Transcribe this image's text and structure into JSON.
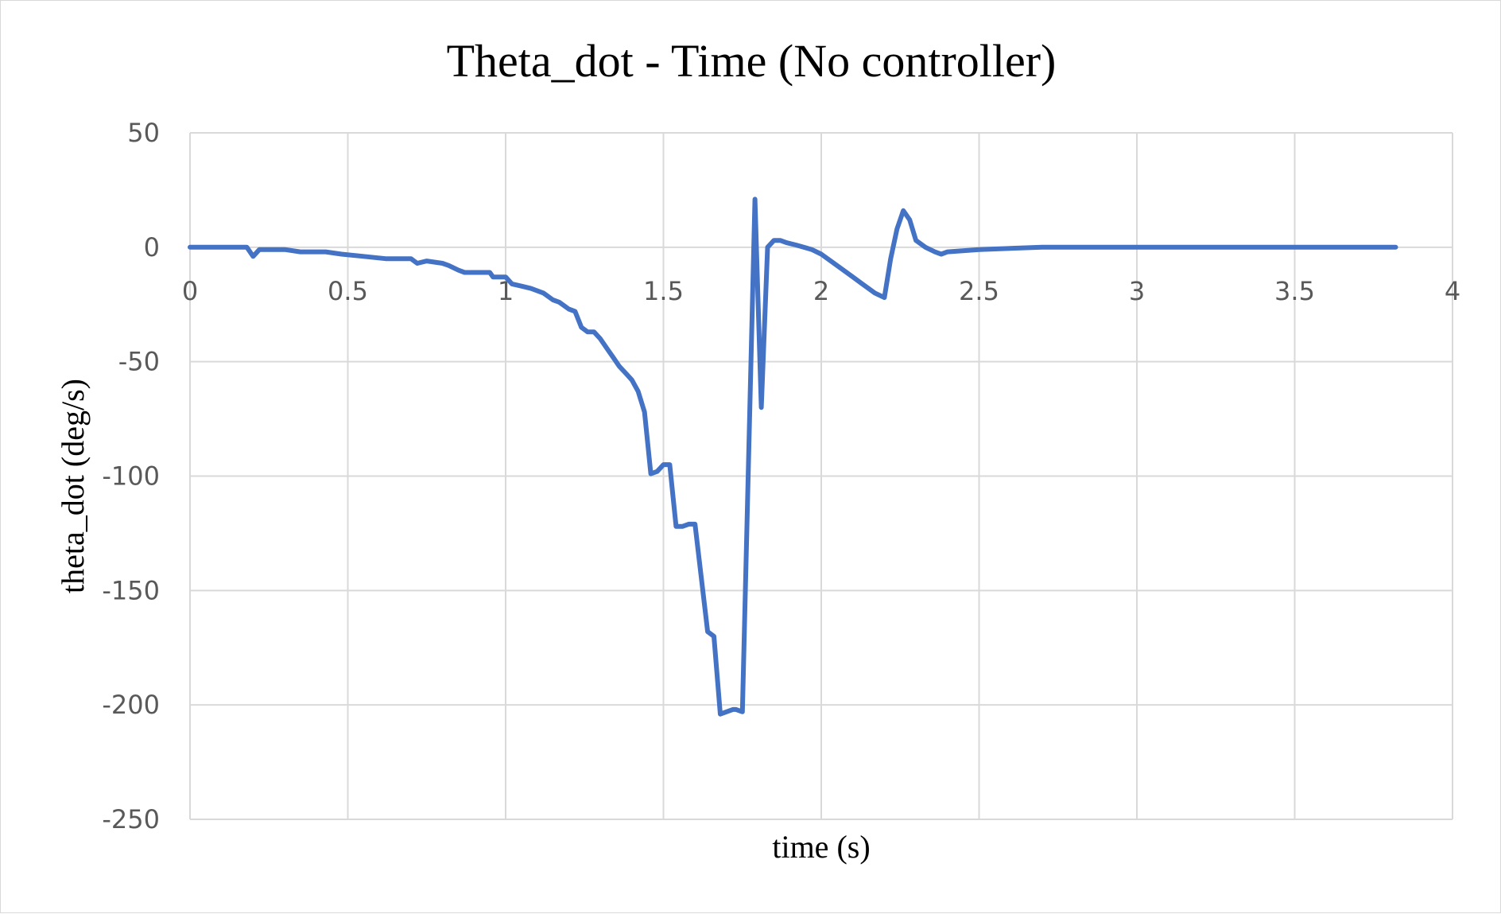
{
  "colors": {
    "series": "#4472C4",
    "grid": "#D9D9D9",
    "tick_text": "#595959"
  },
  "chart_data": {
    "type": "line",
    "title": "Theta_dot - Time (No controller)",
    "xlabel": "time (s)",
    "ylabel": "theta_dot (deg/s)",
    "xlim": [
      0,
      4
    ],
    "ylim": [
      -250,
      50
    ],
    "xticks": [
      0,
      0.5,
      1,
      1.5,
      2,
      2.5,
      3,
      3.5,
      4
    ],
    "yticks": [
      50,
      0,
      -50,
      -100,
      -150,
      -200,
      -250
    ],
    "xtick_labels": [
      "0",
      "0.5",
      "1",
      "1.5",
      "2",
      "2.5",
      "3",
      "3.5",
      "4"
    ],
    "ytick_labels": [
      "50",
      "0",
      "-50",
      "-100",
      "-150",
      "-200",
      "-250"
    ],
    "grid": true,
    "legend": "none",
    "series": [
      {
        "x": [
          0,
          0.18,
          0.2,
          0.22,
          0.3,
          0.35,
          0.43,
          0.48,
          0.55,
          0.62,
          0.7,
          0.72,
          0.75,
          0.8,
          0.82,
          0.85,
          0.87,
          0.9,
          0.95,
          0.96,
          1.0,
          1.02,
          1.05,
          1.08,
          1.12,
          1.15,
          1.17,
          1.2,
          1.22,
          1.24,
          1.26,
          1.28,
          1.3,
          1.32,
          1.34,
          1.36,
          1.38,
          1.4,
          1.42,
          1.44,
          1.46,
          1.48,
          1.5,
          1.52,
          1.54,
          1.56,
          1.58,
          1.6,
          1.64,
          1.66,
          1.68,
          1.7,
          1.72,
          1.73,
          1.75,
          1.79,
          1.81,
          1.83,
          1.85,
          1.87,
          1.89,
          1.92,
          1.97,
          2.0,
          2.03,
          2.07,
          2.1,
          2.13,
          2.17,
          2.2,
          2.22,
          2.24,
          2.26,
          2.28,
          2.3,
          2.33,
          2.36,
          2.38,
          2.4,
          2.5,
          2.7,
          3.0,
          3.5,
          3.82
        ],
        "y": [
          0,
          0,
          -4,
          -1,
          -1,
          -2,
          -2,
          -3,
          -4,
          -5,
          -5,
          -7,
          -6,
          -7,
          -8,
          -10,
          -11,
          -11,
          -11,
          -13,
          -13,
          -16,
          -17,
          -18,
          -20,
          -23,
          -24,
          -27,
          -28,
          -35,
          -37,
          -37,
          -40,
          -44,
          -48,
          -52,
          -55,
          -58,
          -63,
          -72,
          -99,
          -98,
          -95,
          -95,
          -122,
          -122,
          -121,
          -121,
          -168,
          -170,
          -204,
          -203,
          -202,
          -202,
          -203,
          21,
          -70,
          0,
          3,
          3,
          2,
          1,
          -1,
          -3,
          -6,
          -10,
          -13,
          -16,
          -20,
          -22,
          -5,
          8,
          16,
          12,
          3,
          0,
          -2,
          -3,
          -2,
          -1,
          0,
          0,
          0,
          0
        ]
      }
    ]
  }
}
